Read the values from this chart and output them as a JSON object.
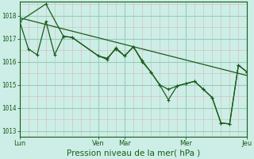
{
  "background_color": "#cceee6",
  "grid_major_color": "#99ccbb",
  "grid_minor_color": "#bbddd4",
  "line_color": "#1a5c1a",
  "text_color": "#1a5c1a",
  "xlabel": "Pression niveau de la mer( hPa )",
  "xlabel_fontsize": 7.5,
  "ylim": [
    1012.75,
    1018.6
  ],
  "yticks": [
    1013,
    1014,
    1015,
    1016,
    1017,
    1018
  ],
  "xtick_labels": [
    "Lun",
    "Ven",
    "Mar",
    "Mer",
    "Jeu"
  ],
  "xtick_positions": [
    0,
    9,
    12,
    19,
    26
  ],
  "total_points": 27,
  "series1_x": [
    0,
    3,
    5,
    6,
    9,
    10,
    11,
    12,
    13,
    14,
    15,
    16,
    17,
    18,
    19,
    20,
    21,
    22,
    23,
    24,
    25,
    26
  ],
  "series1_y": [
    1017.75,
    1018.5,
    1017.1,
    1017.05,
    1016.25,
    1016.15,
    1016.55,
    1016.25,
    1016.65,
    1016.0,
    1015.55,
    1015.0,
    1014.35,
    1014.95,
    1015.05,
    1015.15,
    1014.8,
    1014.45,
    1013.35,
    1013.3,
    1015.85,
    1015.55
  ],
  "series2_x": [
    0,
    1,
    2,
    3,
    4,
    5,
    6,
    9,
    10,
    11,
    12,
    13,
    14,
    15,
    16,
    17,
    18,
    19,
    20,
    21,
    22,
    23,
    24,
    25,
    26
  ],
  "series2_y": [
    1017.75,
    1016.55,
    1016.3,
    1017.75,
    1016.3,
    1017.1,
    1017.05,
    1016.25,
    1016.1,
    1016.6,
    1016.25,
    1016.65,
    1016.05,
    1015.55,
    1015.0,
    1014.8,
    1014.95,
    1015.05,
    1015.15,
    1014.8,
    1014.45,
    1013.35,
    1013.3,
    1015.85,
    1015.55
  ],
  "trend_x": [
    0,
    26
  ],
  "trend_y": [
    1017.9,
    1015.4
  ]
}
